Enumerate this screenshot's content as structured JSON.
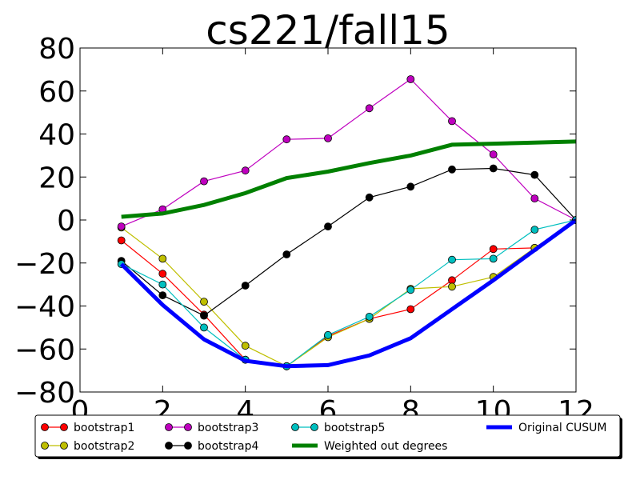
{
  "chart_data": {
    "type": "line",
    "title": "cs221/fall15",
    "xlabel": "",
    "ylabel": "",
    "xlim": [
      0,
      12
    ],
    "ylim": [
      -80,
      80
    ],
    "x_ticks": [
      "0",
      "2",
      "4",
      "6",
      "8",
      "10",
      "12"
    ],
    "y_ticks": [
      "80",
      "60",
      "40",
      "20",
      "0",
      "−20",
      "−40",
      "−60",
      "−80"
    ],
    "grid": false,
    "legend_position": "bottom",
    "x": [
      1,
      2,
      3,
      4,
      5,
      6,
      7,
      8,
      9,
      10,
      11,
      12
    ],
    "series": [
      {
        "name": "bootstrap1",
        "color": "#ff0000",
        "marker": "circle",
        "style": "thin",
        "values": [
          -9.5,
          -25,
          -44,
          -65,
          -68,
          -54,
          -46,
          -41.5,
          -28,
          -13.5,
          -13,
          0
        ]
      },
      {
        "name": "bootstrap2",
        "color": "#bfbf00",
        "marker": "circle",
        "style": "thin",
        "values": [
          -3.5,
          -18,
          -38,
          -58.5,
          -68,
          -54.5,
          -46,
          -32,
          -31,
          -26.5,
          -13,
          0
        ]
      },
      {
        "name": "bootstrap3",
        "color": "#bf00bf",
        "marker": "circle",
        "style": "thin",
        "values": [
          -3,
          5,
          18,
          23,
          37.5,
          38,
          52,
          65.5,
          46,
          30.5,
          10,
          0
        ]
      },
      {
        "name": "bootstrap4",
        "color": "#000000",
        "marker": "circle",
        "style": "thin",
        "values": [
          -19,
          -35,
          -44.5,
          -30.5,
          -16,
          -3,
          10.5,
          15.5,
          23.5,
          24,
          21,
          0
        ]
      },
      {
        "name": "bootstrap5",
        "color": "#00bfbf",
        "marker": "circle",
        "style": "thin",
        "values": [
          -20.5,
          -30,
          -50,
          -65,
          -68,
          -53.5,
          -45,
          -32.5,
          -18.5,
          -18,
          -4.5,
          0
        ]
      },
      {
        "name": "Weighted out degrees",
        "color": "#008000",
        "marker": "none",
        "style": "thick",
        "values": [
          1.5,
          3,
          7,
          12.5,
          19.5,
          22.5,
          26.5,
          30,
          35,
          35.5,
          36,
          36.5
        ]
      },
      {
        "name": "Original CUSUM",
        "color": "#0000ff",
        "marker": "none",
        "style": "thick",
        "values": [
          -20.5,
          -39.5,
          -55.5,
          -65.5,
          -68,
          -67.5,
          -63,
          -55,
          -41.5,
          -28,
          -14,
          0
        ]
      }
    ]
  }
}
